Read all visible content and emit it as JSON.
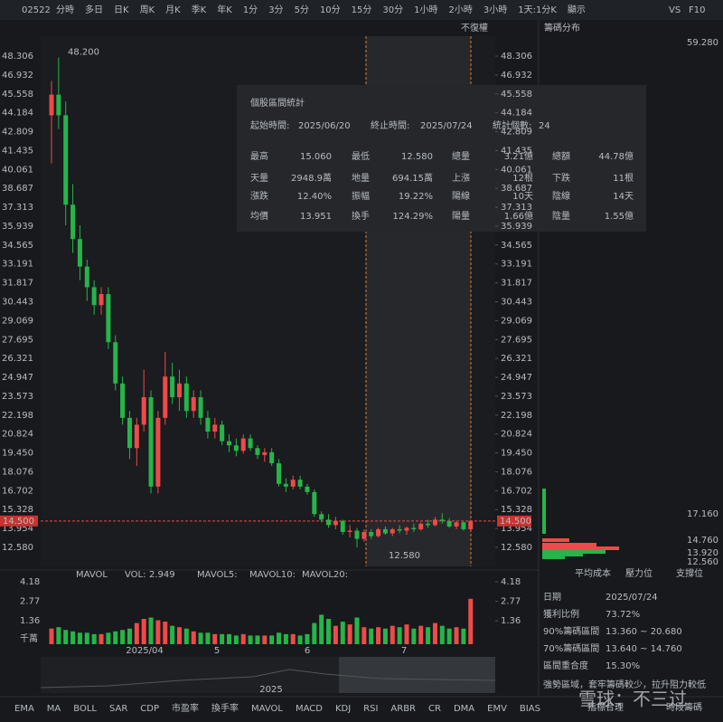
{
  "toolbar": {
    "symbol": "02522",
    "items": [
      "分時",
      "多日",
      "日K",
      "周K",
      "月K",
      "季K",
      "年K",
      "1分",
      "3分",
      "5分",
      "10分",
      "15分",
      "30分",
      "1小時",
      "2小時",
      "3小時",
      "1天:1分K",
      "顯示"
    ],
    "active": "日K",
    "right_items": [
      "VS",
      "F10"
    ]
  },
  "adjust": "不復權",
  "chip_panel": {
    "title": "籌碼分布",
    "prices": [
      "59.280",
      "17.160",
      "14.760",
      "13.920",
      "12.560"
    ],
    "legend": [
      "平均成本",
      "壓力位",
      "支撐位"
    ],
    "rows": [
      [
        "日期",
        "2025/07/24"
      ],
      [
        "獲利比例",
        "73.72%"
      ],
      [
        "90%籌碼區間",
        "13.360 ~ 20.680"
      ],
      [
        "70%籌碼區間",
        "13.640 ~ 14.760"
      ],
      [
        "區間重合度",
        "15.30%"
      ]
    ],
    "note": "強勢區域，套牢籌碼較少，拉升阻力較低",
    "tabs": [
      "指標合理",
      "時段籌碼"
    ]
  },
  "kline": {
    "ylim": [
      12.58,
      48.306
    ],
    "ticks": [
      48.306,
      46.932,
      45.558,
      44.184,
      42.809,
      41.435,
      40.061,
      38.687,
      37.313,
      35.939,
      34.565,
      33.191,
      31.817,
      30.443,
      29.069,
      27.695,
      26.321,
      24.947,
      23.573,
      22.198,
      20.824,
      {
        "value": 19.45,
        "label": "19.450"
      },
      18.076,
      16.702,
      15.328,
      13.954,
      {
        "value": 12.58,
        "label": "12.580"
      }
    ],
    "last_price": {
      "value": 14.5,
      "label": "14.500"
    },
    "high_note": {
      "value": 48.2,
      "label": "48.200"
    },
    "low_note": {
      "value": 12.58,
      "label": "12.580"
    },
    "up_color": "#ef4a4a",
    "down_color": "#25b54a",
    "ohlc": [
      [
        44.0,
        46.5,
        40.5,
        45.5
      ],
      [
        45.5,
        48.2,
        43.0,
        44.0
      ],
      [
        44.0,
        45.0,
        36.0,
        37.5
      ],
      [
        37.5,
        39.0,
        34.0,
        35.0
      ],
      [
        35.0,
        36.0,
        32.0,
        33.0
      ],
      [
        33.0,
        33.5,
        30.5,
        31.5
      ],
      [
        31.5,
        32.0,
        29.5,
        30.2
      ],
      [
        30.2,
        31.5,
        29.5,
        31.0
      ],
      [
        31.0,
        31.5,
        27.0,
        27.5
      ],
      [
        27.5,
        28.0,
        24.0,
        24.5
      ],
      [
        24.5,
        25.0,
        21.5,
        22.0
      ],
      [
        22.0,
        22.5,
        19.0,
        19.8
      ],
      [
        19.8,
        22.0,
        18.5,
        21.5
      ],
      [
        21.5,
        25.5,
        21.0,
        23.5
      ],
      [
        23.5,
        24.0,
        16.5,
        17.0
      ],
      [
        17.0,
        22.5,
        16.5,
        22.0
      ],
      [
        22.0,
        26.8,
        21.5,
        25.0
      ],
      [
        25.0,
        26.0,
        23.0,
        23.5
      ],
      [
        23.5,
        25.5,
        22.5,
        24.5
      ],
      [
        24.5,
        25.0,
        22.0,
        22.5
      ],
      [
        22.5,
        24.0,
        22.0,
        23.5
      ],
      [
        23.5,
        24.0,
        21.5,
        22.0
      ],
      [
        22.0,
        22.5,
        20.5,
        21.0
      ],
      [
        21.0,
        22.0,
        20.5,
        21.5
      ],
      [
        21.5,
        21.8,
        20.0,
        20.3
      ],
      [
        20.3,
        20.8,
        19.5,
        20.0
      ],
      [
        20.0,
        20.5,
        19.2,
        19.6
      ],
      [
        19.6,
        20.8,
        19.4,
        20.5
      ],
      [
        20.5,
        20.8,
        19.6,
        19.8
      ],
      [
        19.8,
        20.0,
        19.0,
        19.3
      ],
      [
        19.3,
        19.8,
        18.8,
        19.5
      ],
      [
        19.5,
        19.8,
        18.5,
        18.7
      ],
      [
        18.7,
        19.0,
        17.0,
        17.2
      ],
      [
        17.2,
        17.6,
        16.6,
        17.0
      ],
      [
        17.0,
        17.8,
        16.8,
        17.5
      ],
      [
        17.5,
        17.8,
        16.8,
        17.0
      ],
      [
        17.0,
        17.2,
        16.4,
        16.6
      ],
      [
        16.6,
        16.8,
        14.8,
        15.0
      ],
      [
        15.0,
        15.2,
        14.4,
        14.6
      ],
      [
        14.6,
        15.0,
        14.0,
        14.2
      ],
      [
        14.2,
        14.8,
        13.9,
        14.5
      ],
      [
        14.5,
        14.6,
        13.5,
        13.7
      ],
      [
        13.7,
        14.2,
        13.3,
        13.8
      ],
      [
        13.8,
        14.0,
        12.58,
        13.2
      ],
      [
        13.2,
        13.9,
        13.0,
        13.7
      ],
      [
        13.7,
        13.9,
        13.2,
        13.4
      ],
      [
        13.4,
        14.0,
        13.3,
        13.9
      ],
      [
        13.9,
        14.1,
        13.5,
        13.6
      ],
      [
        13.6,
        14.0,
        13.4,
        13.9
      ],
      [
        13.9,
        14.2,
        13.6,
        13.8
      ],
      [
        13.8,
        14.1,
        13.5,
        14.0
      ],
      [
        14.0,
        14.3,
        13.7,
        13.9
      ],
      [
        13.9,
        14.4,
        13.8,
        14.3
      ],
      [
        14.3,
        14.6,
        14.0,
        14.2
      ],
      [
        14.2,
        14.8,
        14.1,
        14.6
      ],
      [
        14.6,
        15.06,
        14.3,
        14.5
      ],
      [
        14.5,
        14.7,
        14.0,
        14.1
      ],
      [
        14.1,
        14.5,
        13.9,
        14.4
      ],
      [
        14.4,
        14.5,
        13.8,
        13.9
      ],
      [
        13.9,
        14.6,
        13.8,
        14.5
      ]
    ],
    "volume": [
      0.8,
      0.9,
      0.7,
      0.6,
      0.5,
      0.5,
      0.4,
      0.4,
      0.5,
      0.6,
      0.7,
      0.8,
      1.2,
      1.5,
      1.6,
      1.4,
      1.3,
      1.0,
      0.9,
      0.8,
      0.6,
      0.5,
      0.5,
      0.4,
      0.4,
      0.4,
      0.3,
      0.4,
      0.3,
      0.3,
      0.3,
      0.3,
      0.5,
      0.4,
      0.4,
      0.3,
      0.4,
      1.2,
      1.8,
      1.5,
      1.0,
      1.3,
      1.1,
      1.6,
      0.9,
      0.8,
      0.9,
      0.8,
      1.0,
      0.9,
      1.1,
      0.8,
      1.0,
      0.9,
      1.2,
      1.0,
      0.8,
      0.9,
      0.8,
      2.95
    ],
    "dates": [
      "2025/04",
      "5",
      "6",
      "7"
    ],
    "nav_label": "2025"
  },
  "volume_panel": {
    "title": "MAVOL",
    "vol_label": "VOL:",
    "vol_value": "2.949",
    "ma": [
      "MAVOL5:",
      "MAVOL10:",
      "MAVOL20:"
    ],
    "ylim": [
      0,
      4.18
    ],
    "ticks": [
      4.18,
      2.77,
      1.36
    ],
    "unit": "千萬"
  },
  "stats": {
    "title": "個股區間統計",
    "start_label": "起始時間:",
    "start": "2025/06/20",
    "end_label": "終止時間:",
    "end": "2025/07/24",
    "count_label": "統計個數:",
    "count": "24",
    "cells": [
      [
        {
          "label": "最高",
          "value": "15.060",
          "color": "#ef4a4a"
        },
        {
          "label": "最低",
          "value": "12.580",
          "color": "#25b54a"
        },
        {
          "label": "總量",
          "value": "3.21億"
        },
        {
          "label": "總額",
          "value": "44.78億"
        }
      ],
      [
        {
          "label": "天量",
          "value": "2948.9萬"
        },
        {
          "label": "地量",
          "value": "694.15萬"
        },
        {
          "label": "上漲",
          "value": "12根",
          "color": "#ef4a4a"
        },
        {
          "label": "下跌",
          "value": "11根",
          "color": "#25b54a"
        }
      ],
      [
        {
          "label": "漲跌",
          "value": "12.40%",
          "color": "#ef4a4a"
        },
        {
          "label": "振幅",
          "value": "19.22%"
        },
        {
          "label": "陽線",
          "value": "10天",
          "color": "#ef4a4a"
        },
        {
          "label": "陰線",
          "value": "14天",
          "color": "#25b54a"
        }
      ],
      [
        {
          "label": "均價",
          "value": "13.951",
          "color": "#ef4a4a"
        },
        {
          "label": "換手",
          "value": "124.29%"
        },
        {
          "label": "陽量",
          "value": "1.66億",
          "color": "#ef4a4a"
        },
        {
          "label": "陰量",
          "value": "1.55億",
          "color": "#25b54a"
        }
      ]
    ]
  },
  "indicator_tabs": [
    "EMA",
    "MA",
    "BOLL",
    "SAR",
    "CDP",
    "市盈率",
    "換手率",
    "MAVOL",
    "MACD",
    "KDJ",
    "RSI",
    "ARBR",
    "CR",
    "DMA",
    "EMV",
    "BIAS"
  ],
  "active_tab": "MAVOL",
  "watermark": "雪球：不三过"
}
